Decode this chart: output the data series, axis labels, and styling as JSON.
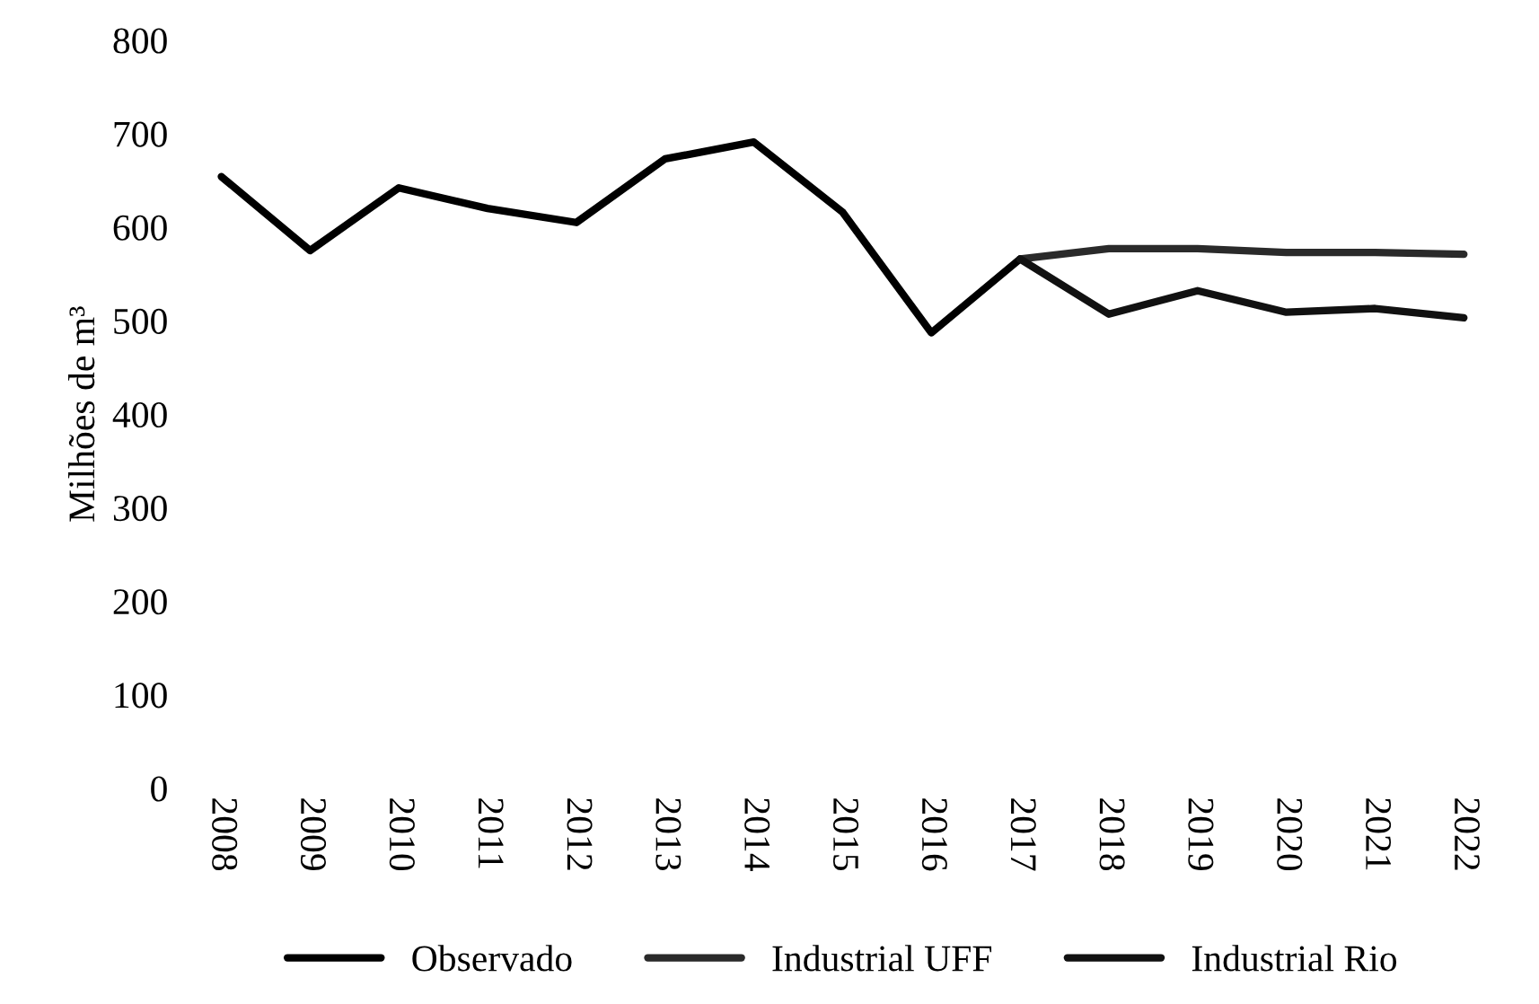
{
  "chart_data": {
    "type": "line",
    "ylabel": "Milhões de m³",
    "categories": [
      "2008",
      "2009",
      "2010",
      "2011",
      "2012",
      "2013",
      "2014",
      "2015",
      "2016",
      "2017",
      "2018",
      "2019",
      "2020",
      "2021",
      "2022"
    ],
    "series": [
      {
        "name": "Observado",
        "color": "#000000",
        "values": [
          654,
          575,
          642,
          620,
          605,
          673,
          691,
          616,
          487,
          566,
          null,
          null,
          null,
          null,
          null
        ]
      },
      {
        "name": "Industrial UFF",
        "color": "#2a2a2a",
        "values": [
          null,
          null,
          null,
          null,
          null,
          null,
          null,
          null,
          null,
          566,
          577,
          577,
          573,
          573,
          571
        ]
      },
      {
        "name": "Industrial Rio",
        "color": "#111111",
        "values": [
          null,
          null,
          null,
          null,
          null,
          null,
          null,
          null,
          null,
          566,
          507,
          532,
          509,
          513,
          503
        ]
      }
    ],
    "ylim": [
      0,
      800
    ],
    "yticks": [
      0,
      100,
      200,
      300,
      400,
      500,
      600,
      700,
      800
    ],
    "grid": false,
    "legend": "bottom",
    "line_style": "solid",
    "marker": "none"
  }
}
